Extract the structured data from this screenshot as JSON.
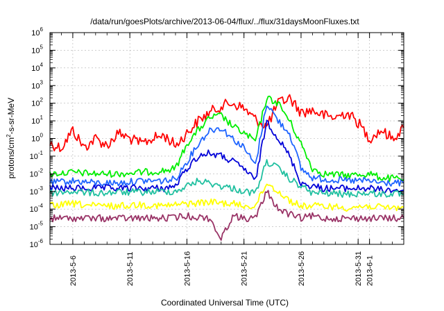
{
  "chart_data": {
    "type": "line",
    "title": "/data/run/goesPlots/archive/2013-06-04/flux/../flux/31daysMoonFluxes.txt",
    "xlabel": "Coordinated Universal Time (UTC)",
    "ylabel_parts": [
      "protons/cm",
      "2",
      "-s-sr-MeV"
    ],
    "y_scale": "log",
    "ylim": [
      1e-06,
      1000000.0
    ],
    "y_ticks": [
      {
        "base": "10",
        "exp": "-6",
        "value": 1e-06
      },
      {
        "base": "10",
        "exp": "-5",
        "value": 1e-05
      },
      {
        "base": "10",
        "exp": "-4",
        "value": 0.0001
      },
      {
        "base": "10",
        "exp": "-3",
        "value": 0.001
      },
      {
        "base": "10",
        "exp": "-2",
        "value": 0.01
      },
      {
        "base": "10",
        "exp": "-1",
        "value": 0.1
      },
      {
        "base": "10",
        "exp": "0",
        "value": 1
      },
      {
        "base": "10",
        "exp": "1",
        "value": 10
      },
      {
        "base": "10",
        "exp": "2",
        "value": 100
      },
      {
        "base": "10",
        "exp": "3",
        "value": 1000
      },
      {
        "base": "10",
        "exp": "4",
        "value": 10000
      },
      {
        "base": "10",
        "exp": "5",
        "value": 100000
      },
      {
        "base": "10",
        "exp": "6",
        "value": 1000000
      }
    ],
    "xlim": [
      "2013-05-04",
      "2013-06-04"
    ],
    "x_ticks": [
      "2013-5-6",
      "2013-5-11",
      "2013-5-16",
      "2013-5-21",
      "2013-5-26",
      "2013-5-31",
      "2013-6-1"
    ],
    "grid": true,
    "series": [
      {
        "color": "#ff0000",
        "x": [
          "2013-05-04",
          "2013-05-05",
          "2013-05-06",
          "2013-05-07",
          "2013-05-08",
          "2013-05-09",
          "2013-05-10",
          "2013-05-11",
          "2013-05-12",
          "2013-05-13",
          "2013-05-14",
          "2013-05-15",
          "2013-05-16",
          "2013-05-17",
          "2013-05-18",
          "2013-05-19",
          "2013-05-20",
          "2013-05-21",
          "2013-05-22",
          "2013-05-23",
          "2013-05-24",
          "2013-05-25",
          "2013-05-26",
          "2013-05-27",
          "2013-05-28",
          "2013-05-29",
          "2013-05-30",
          "2013-05-31",
          "2013-06-01",
          "2013-06-02",
          "2013-06-03",
          "2013-06-04"
        ],
        "y": [
          0.5,
          0.3,
          3,
          0.3,
          1,
          0.4,
          2,
          1,
          0.5,
          1,
          1.5,
          0.4,
          2,
          10,
          30,
          70,
          100,
          50,
          12,
          5,
          100,
          200,
          30,
          40,
          20,
          15,
          30,
          8,
          1,
          3,
          1,
          4
        ]
      },
      {
        "color": "#00ee00",
        "x": [
          "2013-05-04",
          "2013-05-06",
          "2013-05-08",
          "2013-05-10",
          "2013-05-12",
          "2013-05-14",
          "2013-05-15",
          "2013-05-16",
          "2013-05-17",
          "2013-05-18",
          "2013-05-19",
          "2013-05-20",
          "2013-05-21",
          "2013-05-22",
          "2013-05-23",
          "2013-05-24",
          "2013-05-25",
          "2013-05-26",
          "2013-05-27",
          "2013-05-28",
          "2013-05-30",
          "2013-06-01",
          "2013-06-02",
          "2013-06-04"
        ],
        "y": [
          0.01,
          0.012,
          0.01,
          0.01,
          0.012,
          0.015,
          0.02,
          0.5,
          3,
          15,
          20,
          5,
          2,
          0.7,
          200,
          100,
          10,
          0.5,
          0.02,
          0.01,
          0.008,
          0.01,
          0.006,
          0.005
        ]
      },
      {
        "color": "#1e64ff",
        "x": [
          "2013-05-04",
          "2013-05-06",
          "2013-05-08",
          "2013-05-10",
          "2013-05-12",
          "2013-05-14",
          "2013-05-15",
          "2013-05-16",
          "2013-05-17",
          "2013-05-18",
          "2013-05-19",
          "2013-05-20",
          "2013-05-21",
          "2013-05-22",
          "2013-05-23",
          "2013-05-24",
          "2013-05-25",
          "2013-05-26",
          "2013-05-27",
          "2013-05-28",
          "2013-05-30",
          "2013-06-01",
          "2013-06-02",
          "2013-06-04"
        ],
        "y": [
          0.003,
          0.004,
          0.003,
          0.003,
          0.004,
          0.004,
          0.005,
          0.05,
          0.5,
          3,
          4,
          1,
          0.3,
          0.03,
          100,
          10,
          2,
          0.02,
          0.006,
          0.005,
          0.004,
          0.004,
          0.003,
          0.003
        ]
      },
      {
        "color": "#0000d8",
        "x": [
          "2013-05-04",
          "2013-05-06",
          "2013-05-08",
          "2013-05-10",
          "2013-05-12",
          "2013-05-14",
          "2013-05-15",
          "2013-05-16",
          "2013-05-17",
          "2013-05-18",
          "2013-05-19",
          "2013-05-20",
          "2013-05-21",
          "2013-05-22",
          "2013-05-23",
          "2013-05-24",
          "2013-05-25",
          "2013-05-26",
          "2013-05-27",
          "2013-05-28",
          "2013-05-30",
          "2013-06-01",
          "2013-06-02",
          "2013-06-04"
        ],
        "y": [
          0.0015,
          0.0015,
          0.0015,
          0.0015,
          0.0015,
          0.0015,
          0.002,
          0.02,
          0.1,
          0.15,
          0.1,
          0.05,
          0.02,
          0.004,
          10,
          1,
          0.1,
          0.003,
          0.002,
          0.0015,
          0.0015,
          0.0015,
          0.0012,
          0.0012
        ]
      },
      {
        "color": "#20c0a0",
        "x": [
          "2013-05-04",
          "2013-05-06",
          "2013-05-08",
          "2013-05-10",
          "2013-05-12",
          "2013-05-14",
          "2013-05-15",
          "2013-05-16",
          "2013-05-17",
          "2013-05-18",
          "2013-05-19",
          "2013-05-20",
          "2013-05-21",
          "2013-05-22",
          "2013-05-23",
          "2013-05-24",
          "2013-05-25",
          "2013-05-26",
          "2013-05-27",
          "2013-05-28",
          "2013-05-30",
          "2013-06-01",
          "2013-06-02",
          "2013-06-04"
        ],
        "y": [
          0.0008,
          0.001,
          0.0008,
          0.0009,
          0.0009,
          0.001,
          0.001,
          0.002,
          0.004,
          0.003,
          0.002,
          0.0015,
          0.001,
          0.0008,
          0.05,
          0.02,
          0.005,
          0.002,
          0.0008,
          0.0008,
          0.0007,
          0.0008,
          0.0007,
          0.0007
        ]
      },
      {
        "color": "#ffff00",
        "x": [
          "2013-05-04",
          "2013-05-06",
          "2013-05-08",
          "2013-05-10",
          "2013-05-12",
          "2013-05-14",
          "2013-05-16",
          "2013-05-18",
          "2013-05-20",
          "2013-05-21",
          "2013-05-22",
          "2013-05-23",
          "2013-05-24",
          "2013-05-25",
          "2013-05-26",
          "2013-05-27",
          "2013-05-28",
          "2013-05-30",
          "2013-06-01",
          "2013-06-02",
          "2013-06-04"
        ],
        "y": [
          0.00015,
          0.0002,
          0.00015,
          0.00015,
          0.00018,
          0.00015,
          0.0002,
          0.00025,
          0.0002,
          0.00015,
          0.00015,
          0.003,
          0.001,
          0.0003,
          0.00015,
          0.00015,
          0.00015,
          0.00012,
          0.00015,
          0.00012,
          0.00012
        ]
      },
      {
        "color": "#993366",
        "x": [
          "2013-05-04",
          "2013-05-06",
          "2013-05-08",
          "2013-05-10",
          "2013-05-12",
          "2013-05-14",
          "2013-05-16",
          "2013-05-18",
          "2013-05-19",
          "2013-05-20",
          "2013-05-21",
          "2013-05-22",
          "2013-05-23",
          "2013-05-24",
          "2013-05-25",
          "2013-05-26",
          "2013-05-27",
          "2013-05-28",
          "2013-05-30",
          "2013-06-01",
          "2013-06-02",
          "2013-06-04"
        ],
        "y": [
          3e-05,
          3e-05,
          3e-05,
          3e-05,
          3e-05,
          3e-05,
          4e-05,
          3e-05,
          2e-06,
          4e-05,
          3e-05,
          3e-05,
          0.001,
          0.0001,
          5e-05,
          3e-05,
          4e-05,
          3e-05,
          3e-05,
          3e-05,
          3e-05,
          3e-05
        ]
      }
    ]
  }
}
